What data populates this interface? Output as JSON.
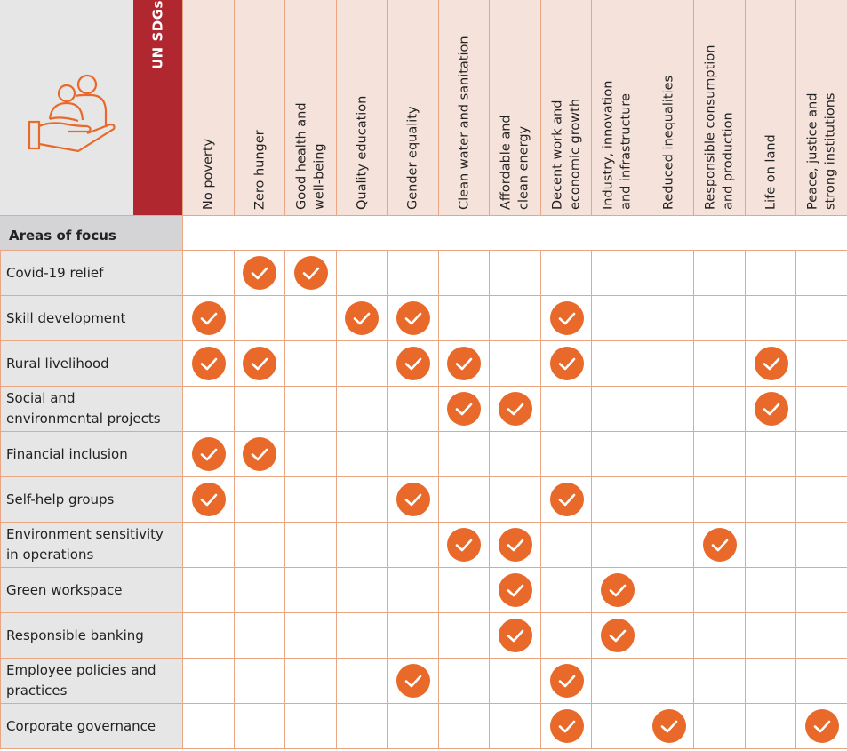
{
  "header": {
    "title": "UN SDGs",
    "row_header": "Areas of focus",
    "icon": "hand-holding-people-icon"
  },
  "colors": {
    "accent": "#e8692a",
    "brand_red": "#b0272f",
    "header_bg": "#f5e2db",
    "border": "#eaa583"
  },
  "sdgs": [
    "No poverty",
    "Zero hunger",
    "Good health and\nwell-being",
    "Quality education",
    "Gender equality",
    "Clean water and sanitation",
    "Affordable and\nclean energy",
    "Decent work and\neconomic growth",
    "Industry, innovation\nand infrastructure",
    "Reduced inequalities",
    "Responsible consumption\nand production",
    "Life on land",
    "Peace, justice and\nstrong institutions"
  ],
  "rows": [
    {
      "label": "Covid-19 relief",
      "checks": [
        1,
        2
      ]
    },
    {
      "label": "Skill development",
      "checks": [
        0,
        3,
        4,
        7
      ]
    },
    {
      "label": "Rural livelihood",
      "checks": [
        0,
        1,
        4,
        5,
        7,
        11
      ]
    },
    {
      "label": "Social and\nenvironmental projects",
      "checks": [
        5,
        6,
        11
      ]
    },
    {
      "label": "Financial inclusion",
      "checks": [
        0,
        1
      ]
    },
    {
      "label": "Self-help groups",
      "checks": [
        0,
        4,
        7
      ]
    },
    {
      "label": "Environment sensitivity\nin operations",
      "checks": [
        5,
        6,
        10
      ]
    },
    {
      "label": "Green workspace",
      "checks": [
        6,
        8
      ]
    },
    {
      "label": "Responsible banking",
      "checks": [
        6,
        8
      ]
    },
    {
      "label": "Employee policies and\npractices",
      "checks": [
        4,
        7
      ]
    },
    {
      "label": "Corporate governance",
      "checks": [
        7,
        9,
        12
      ]
    }
  ]
}
